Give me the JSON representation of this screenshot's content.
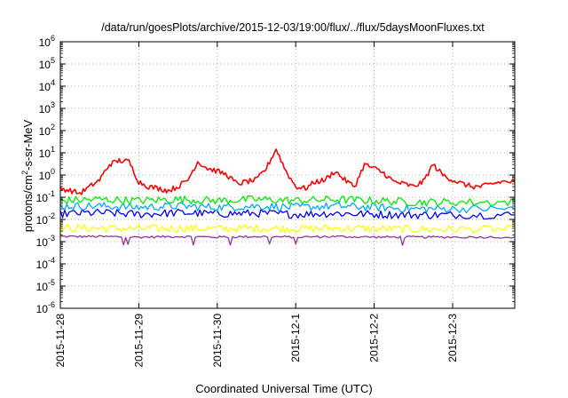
{
  "chart_data": {
    "type": "line",
    "title": "/data/run/goesPlots/archive/2015-12-03/19:00/flux/../flux/5daysMoonFluxes.txt",
    "xlabel": "Coordinated Universal Time (UTC)",
    "ylabel_parts": [
      "protons/cm",
      "2",
      "-s-sr-MeV"
    ],
    "y_scale": "log",
    "ylim": [
      1e-06,
      1000000.0
    ],
    "y_ticks": [
      {
        "base": "10",
        "exp": "-6",
        "value": 1e-06
      },
      {
        "base": "10",
        "exp": "-5",
        "value": 1e-05
      },
      {
        "base": "10",
        "exp": "-4",
        "value": 0.0001
      },
      {
        "base": "10",
        "exp": "-3",
        "value": 0.001
      },
      {
        "base": "10",
        "exp": "-2",
        "value": 0.01
      },
      {
        "base": "10",
        "exp": "-1",
        "value": 0.1
      },
      {
        "base": "10",
        "exp": "0",
        "value": 1
      },
      {
        "base": "10",
        "exp": "1",
        "value": 10
      },
      {
        "base": "10",
        "exp": "2",
        "value": 100
      },
      {
        "base": "10",
        "exp": "3",
        "value": 1000
      },
      {
        "base": "10",
        "exp": "4",
        "value": 10000
      },
      {
        "base": "10",
        "exp": "5",
        "value": 100000
      },
      {
        "base": "10",
        "exp": "6",
        "value": 1000000
      }
    ],
    "xlim": [
      "2015-11-28",
      "2015-12-03T19:00"
    ],
    "x_ticks": [
      "2015-11-28",
      "2015-11-29",
      "2015-11-30",
      "2015-12-1",
      "2015-12-2",
      "2015-12-3"
    ],
    "grid": true,
    "legend": "none",
    "series": [
      {
        "color": "#ff0000",
        "x": [
          "2015-11-28T00:00",
          "2015-11-28T03:00",
          "2015-11-28T06:00",
          "2015-11-28T09:00",
          "2015-11-28T12:00",
          "2015-11-28T15:00",
          "2015-11-28T18:00",
          "2015-11-28T21:00",
          "2015-11-29T00:00",
          "2015-11-29T03:00",
          "2015-11-29T06:00",
          "2015-11-29T09:00",
          "2015-11-29T12:00",
          "2015-11-29T15:00",
          "2015-11-29T18:00",
          "2015-11-29T21:00",
          "2015-11-30T00:00",
          "2015-11-30T03:00",
          "2015-11-30T06:00",
          "2015-11-30T09:00",
          "2015-11-30T12:00",
          "2015-11-30T15:00",
          "2015-11-30T18:00",
          "2015-11-30T21:00",
          "2015-12-01T00:00",
          "2015-12-01T03:00",
          "2015-12-01T06:00",
          "2015-12-01T09:00",
          "2015-12-01T12:00",
          "2015-12-01T15:00",
          "2015-12-01T18:00",
          "2015-12-01T21:00",
          "2015-12-02T00:00",
          "2015-12-02T03:00",
          "2015-12-02T06:00",
          "2015-12-02T09:00",
          "2015-12-02T12:00",
          "2015-12-02T15:00",
          "2015-12-02T18:00",
          "2015-12-02T21:00",
          "2015-12-03T00:00",
          "2015-12-03T03:00",
          "2015-12-03T06:00",
          "2015-12-03T09:00",
          "2015-12-03T12:00",
          "2015-12-03T15:00",
          "2015-12-03T19:00"
        ],
        "values": [
          0.25,
          0.2,
          0.15,
          0.3,
          0.6,
          3,
          4.5,
          4,
          0.5,
          0.3,
          0.25,
          0.2,
          0.3,
          0.6,
          4,
          2,
          1.5,
          1,
          0.4,
          0.5,
          0.6,
          2,
          15,
          1.5,
          0.3,
          0.25,
          0.5,
          0.6,
          1.5,
          0.6,
          0.3,
          3,
          2,
          1.2,
          0.5,
          0.4,
          0.3,
          0.5,
          3,
          1,
          0.6,
          0.4,
          0.3,
          0.3,
          0.4,
          0.5,
          0.5
        ]
      },
      {
        "color": "#00ee00",
        "x": [
          "2015-11-28",
          "2015-11-28T12:00",
          "2015-11-29",
          "2015-11-29T12:00",
          "2015-11-30",
          "2015-11-30T12:00",
          "2015-12-01",
          "2015-12-01T12:00",
          "2015-12-02",
          "2015-12-02T12:00",
          "2015-12-03",
          "2015-12-03T19:00"
        ],
        "values": [
          0.07,
          0.08,
          0.07,
          0.08,
          0.07,
          0.08,
          0.07,
          0.08,
          0.07,
          0.06,
          0.06,
          0.06
        ]
      },
      {
        "color": "#00aaff",
        "x": [
          "2015-11-28",
          "2015-11-28T12:00",
          "2015-11-29",
          "2015-11-29T12:00",
          "2015-11-30",
          "2015-11-30T12:00",
          "2015-12-01",
          "2015-12-01T12:00",
          "2015-12-02",
          "2015-12-02T12:00",
          "2015-12-03",
          "2015-12-03T19:00"
        ],
        "values": [
          0.04,
          0.04,
          0.035,
          0.04,
          0.035,
          0.04,
          0.035,
          0.04,
          0.035,
          0.03,
          0.03,
          0.03
        ]
      },
      {
        "color": "#0000ff",
        "x": [
          "2015-11-28",
          "2015-11-28T12:00",
          "2015-11-29",
          "2015-11-29T12:00",
          "2015-11-30",
          "2015-11-30T12:00",
          "2015-12-01",
          "2015-12-01T12:00",
          "2015-12-02",
          "2015-12-02T12:00",
          "2015-12-03",
          "2015-12-03T19:00"
        ],
        "values": [
          0.018,
          0.02,
          0.017,
          0.02,
          0.018,
          0.019,
          0.017,
          0.019,
          0.017,
          0.016,
          0.016,
          0.016
        ]
      },
      {
        "color": "#ffff00",
        "x": [
          "2015-11-28",
          "2015-11-28T12:00",
          "2015-11-29",
          "2015-11-29T12:00",
          "2015-11-30",
          "2015-11-30T12:00",
          "2015-12-01",
          "2015-12-01T12:00",
          "2015-12-02",
          "2015-12-02T12:00",
          "2015-12-03",
          "2015-12-03T19:00"
        ],
        "values": [
          0.004,
          0.004,
          0.0038,
          0.004,
          0.0038,
          0.004,
          0.0038,
          0.004,
          0.0038,
          0.0036,
          0.0036,
          0.0036
        ]
      },
      {
        "color": "#993399",
        "x": [
          "2015-11-28",
          "2015-11-28T12:00",
          "2015-11-29",
          "2015-11-29T12:00",
          "2015-11-30",
          "2015-11-30T12:00",
          "2015-12-01",
          "2015-12-01T12:00",
          "2015-12-02",
          "2015-12-02T12:00",
          "2015-12-03",
          "2015-12-03T19:00"
        ],
        "values": [
          0.0017,
          0.0017,
          0.0016,
          0.0017,
          0.0016,
          0.0017,
          0.0016,
          0.0017,
          0.0016,
          0.0016,
          0.0016,
          0.0016
        ]
      }
    ]
  }
}
